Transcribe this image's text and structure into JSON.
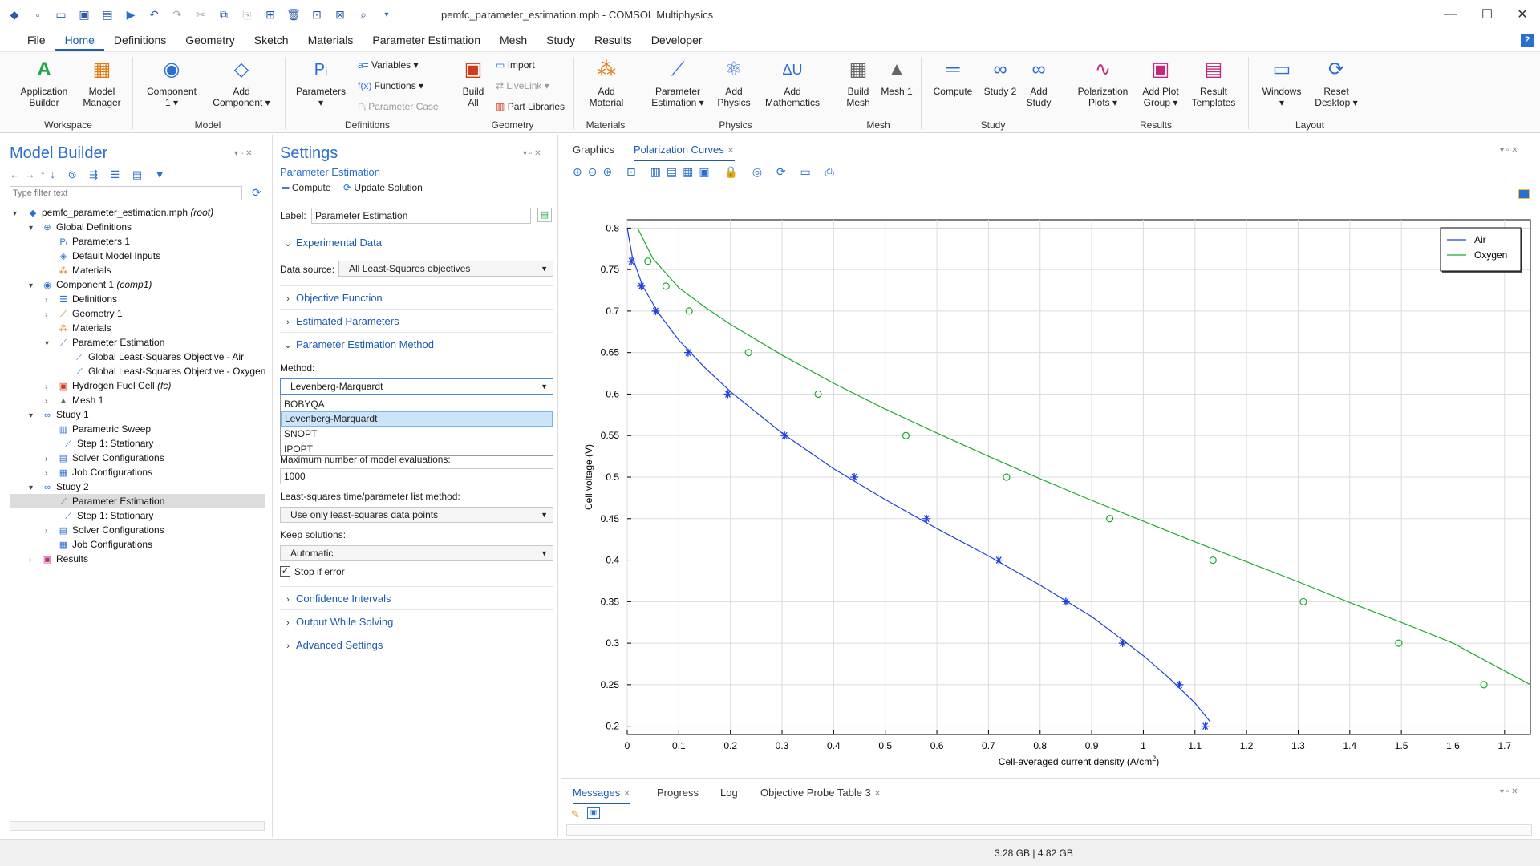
{
  "window": {
    "title": "pemfc_parameter_estimation.mph - COMSOL Multiphysics"
  },
  "menu": [
    "File",
    "Home",
    "Definitions",
    "Geometry",
    "Sketch",
    "Materials",
    "Parameter Estimation",
    "Mesh",
    "Study",
    "Results",
    "Developer"
  ],
  "ribbon": {
    "app_builder": "Application Builder",
    "model_manager": "Model Manager",
    "component": "Component 1",
    "add_component": "Add Component",
    "parameters": "Parameters",
    "variables": "Variables",
    "functions": "Functions",
    "parameter_case": "Parameter Case",
    "build_all": "Build All",
    "import": "Import",
    "livelink": "LiveLink",
    "part_libraries": "Part Libraries",
    "add_material": "Add Material",
    "parameter_estimation": "Parameter Estimation",
    "add_physics": "Add Physics",
    "add_mathematics": "Add Mathematics",
    "build_mesh": "Build Mesh",
    "mesh1": "Mesh 1",
    "compute": "Compute",
    "study2": "Study 2",
    "add_study": "Add Study",
    "polarization_plots": "Polarization Plots",
    "add_plot_group": "Add Plot Group",
    "result_templates": "Result Templates",
    "windows": "Windows",
    "reset_desktop": "Reset Desktop",
    "groups": {
      "workspace": "Workspace",
      "model": "Model",
      "definitions": "Definitions",
      "geometry": "Geometry",
      "materials": "Materials",
      "physics": "Physics",
      "mesh": "Mesh",
      "study": "Study",
      "results": "Results",
      "layout": "Layout"
    }
  },
  "model_builder": {
    "title": "Model Builder",
    "filter_placeholder": "Type filter text",
    "root": "pemfc_parameter_estimation.mph",
    "root_tag": "(root)",
    "items": {
      "global_defs": "Global Definitions",
      "parameters1": "Parameters 1",
      "default_inputs": "Default Model Inputs",
      "materials_g": "Materials",
      "component1": "Component 1",
      "component1_tag": "(comp1)",
      "definitions": "Definitions",
      "geometry1": "Geometry 1",
      "materials_c": "Materials",
      "param_est": "Parameter Estimation",
      "gls_air": "Global Least-Squares Objective - Air",
      "gls_oxygen": "Global Least-Squares Objective - Oxygen",
      "hfc": "Hydrogen Fuel Cell",
      "hfc_tag": "(fc)",
      "mesh1": "Mesh 1",
      "study1": "Study 1",
      "param_sweep": "Parametric Sweep",
      "step1_s1": "Step 1: Stationary",
      "solver_cfg1": "Solver Configurations",
      "job_cfg1": "Job Configurations",
      "study2": "Study 2",
      "param_est_s2": "Parameter Estimation",
      "step1_s2": "Step 1: Stationary",
      "solver_cfg2": "Solver Configurations",
      "job_cfg2": "Job Configurations",
      "results": "Results"
    }
  },
  "settings": {
    "title": "Settings",
    "subtitle": "Parameter Estimation",
    "compute": "Compute",
    "update_solution": "Update Solution",
    "label_caption": "Label:",
    "label_value": "Parameter Estimation",
    "sec_experimental": "Experimental Data",
    "data_source_caption": "Data source:",
    "data_source_value": "All Least-Squares objectives",
    "sec_objective": "Objective Function",
    "sec_estimated": "Estimated Parameters",
    "sec_method": "Parameter Estimation Method",
    "method_caption": "Method:",
    "method_value": "Levenberg-Marquardt",
    "method_options": [
      "BOBYQA",
      "Levenberg-Marquardt",
      "SNOPT",
      "IPOPT"
    ],
    "max_evals_caption": "Maximum number of model evaluations:",
    "max_evals_value": "1000",
    "ls_method_caption": "Least-squares time/parameter list method:",
    "ls_method_value": "Use only least-squares data points",
    "keep_caption": "Keep solutions:",
    "keep_value": "Automatic",
    "stop_if_error": "Stop if error",
    "sec_confidence": "Confidence Intervals",
    "sec_output": "Output While Solving",
    "sec_advanced": "Advanced Settings"
  },
  "graphics": {
    "tabs": [
      "Graphics",
      "Polarization Curves"
    ]
  },
  "chart_data": {
    "type": "line",
    "xlabel": "Cell-averaged current density (A/cm",
    "xlabel_sup": "2",
    "xlabel_tail": ")",
    "ylabel": "Cell voltage (V)",
    "xlim": [
      0,
      1.75
    ],
    "ylim": [
      0.19,
      0.81
    ],
    "xticks": [
      "0",
      "0.1",
      "0.2",
      "0.3",
      "0.4",
      "0.5",
      "0.6",
      "0.7",
      "0.8",
      "0.9",
      "1",
      "1.1",
      "1.2",
      "1.3",
      "1.4",
      "1.5",
      "1.6",
      "1.7"
    ],
    "yticks": [
      "0.2",
      "0.25",
      "0.3",
      "0.35",
      "0.4",
      "0.45",
      "0.5",
      "0.55",
      "0.6",
      "0.65",
      "0.7",
      "0.75",
      "0.8"
    ],
    "grid": true,
    "legend_position": "top-right",
    "series": [
      {
        "name": "Air",
        "color": "#1f3fe0",
        "marker": "asterisk",
        "points_x": [
          0.008,
          0.027,
          0.055,
          0.118,
          0.195,
          0.305,
          0.44,
          0.58,
          0.72,
          0.85,
          0.96,
          1.07,
          1.12
        ],
        "points_y": [
          0.76,
          0.73,
          0.7,
          0.65,
          0.6,
          0.55,
          0.5,
          0.45,
          0.4,
          0.35,
          0.3,
          0.25,
          0.2
        ],
        "curve_x": [
          0.0,
          0.01,
          0.03,
          0.06,
          0.1,
          0.15,
          0.2,
          0.3,
          0.4,
          0.5,
          0.6,
          0.7,
          0.8,
          0.9,
          1.0,
          1.05,
          1.1,
          1.13
        ],
        "curve_y": [
          0.8,
          0.765,
          0.73,
          0.698,
          0.665,
          0.632,
          0.603,
          0.553,
          0.51,
          0.473,
          0.438,
          0.405,
          0.37,
          0.332,
          0.285,
          0.258,
          0.228,
          0.205
        ]
      },
      {
        "name": "Oxygen",
        "color": "#1fa830",
        "marker": "circle",
        "points_x": [
          0.04,
          0.075,
          0.12,
          0.235,
          0.37,
          0.54,
          0.735,
          0.935,
          1.135,
          1.31,
          1.495,
          1.66
        ],
        "points_y": [
          0.76,
          0.73,
          0.7,
          0.65,
          0.6,
          0.55,
          0.5,
          0.45,
          0.4,
          0.35,
          0.3,
          0.25
        ],
        "curve_x": [
          0.02,
          0.05,
          0.1,
          0.15,
          0.2,
          0.3,
          0.4,
          0.5,
          0.6,
          0.7,
          0.8,
          0.9,
          1.0,
          1.1,
          1.2,
          1.3,
          1.4,
          1.5,
          1.6,
          1.75
        ],
        "curve_y": [
          0.8,
          0.763,
          0.728,
          0.705,
          0.684,
          0.647,
          0.613,
          0.582,
          0.553,
          0.525,
          0.498,
          0.472,
          0.447,
          0.422,
          0.398,
          0.374,
          0.349,
          0.325,
          0.3,
          0.25
        ]
      }
    ]
  },
  "bottom": {
    "tabs": [
      "Messages",
      "Progress",
      "Log",
      "Objective Probe Table 3"
    ]
  },
  "status": {
    "memory": "3.28 GB | 4.82 GB"
  }
}
